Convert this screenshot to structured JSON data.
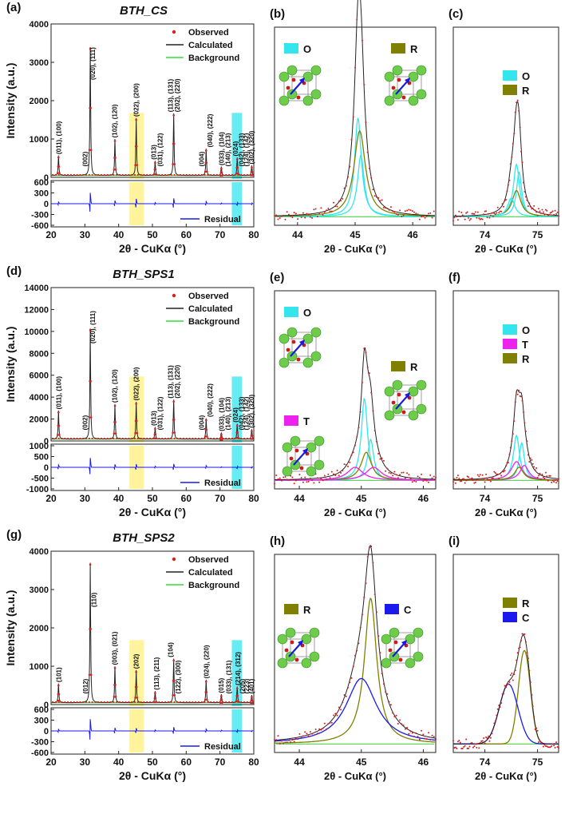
{
  "figure": {
    "panels": [
      {
        "id": "a",
        "label": "(a)",
        "title": "BTH_CS"
      },
      {
        "id": "b",
        "label": "(b)"
      },
      {
        "id": "c",
        "label": "(c)"
      },
      {
        "id": "d",
        "label": "(d)",
        "title": "BTH_SPS1"
      },
      {
        "id": "e",
        "label": "(e)"
      },
      {
        "id": "f",
        "label": "(f)"
      },
      {
        "id": "g",
        "label": "(g)",
        "title": "BTH_SPS2"
      },
      {
        "id": "h",
        "label": "(h)"
      },
      {
        "id": "i",
        "label": "(i)"
      }
    ],
    "colors": {
      "observed": "#d42020",
      "calculated": "#222222",
      "background": "#33dd33",
      "residual": "#1a1aee",
      "phase_O": "#33e6ee",
      "phase_R": "#808000",
      "phase_T": "#ee22ee",
      "phase_C": "#1a1aee",
      "highlight_yellow": "#fff07a",
      "highlight_cyan": "#33e6ee"
    }
  },
  "chart_data": [
    {
      "panel": "a",
      "type": "line",
      "title": "BTH_CS",
      "xlabel": "2θ - CuKα (°)",
      "ylabel": "Intensity (a.u.)",
      "xlim": [
        20,
        80
      ],
      "ylim": [
        -600,
        4000
      ],
      "xticks": [
        20,
        30,
        40,
        50,
        60,
        70,
        80
      ],
      "yticks": [
        0,
        1000,
        2000,
        3000,
        4000
      ],
      "residual_ticks": [
        600,
        300,
        0,
        -300,
        -600
      ],
      "legend": [
        "Observed",
        "Calculated",
        "Background"
      ],
      "residual_label": "Residual",
      "peaks": [
        [
          22.2,
          520
        ],
        [
          31.6,
          3350
        ],
        [
          38.9,
          950
        ],
        [
          45.2,
          1500
        ],
        [
          50.8,
          380
        ],
        [
          56.3,
          1620
        ],
        [
          65.9,
          700
        ],
        [
          70.4,
          230
        ],
        [
          75.1,
          470
        ],
        [
          79.4,
          260
        ]
      ],
      "peak_labels": [
        {
          "x": 22.2,
          "text": "(011), (100)"
        },
        {
          "x": 30.0,
          "text": "(002)"
        },
        {
          "x": 32.3,
          "text": "(020), (111)"
        },
        {
          "x": 38.8,
          "text": "(102), (120)"
        },
        {
          "x": 45.2,
          "text": "(022), (200)"
        },
        {
          "x": 50.3,
          "text": "(013)"
        },
        {
          "x": 52.3,
          "text": "(031), (122)"
        },
        {
          "x": 55.3,
          "text": "(113), (131)"
        },
        {
          "x": 57.3,
          "text": "(202), (220)"
        },
        {
          "x": 64.5,
          "text": "(004)"
        },
        {
          "x": 67.0,
          "text": "(040), (222)"
        },
        {
          "x": 70.4,
          "text": "(033), (104)"
        },
        {
          "x": 72.3,
          "text": "(140), (213)"
        },
        {
          "x": 74.6,
          "text": "(024)"
        },
        {
          "x": 76.3,
          "text": "(042), (133)"
        },
        {
          "x": 77.8,
          "text": "(124), (142)"
        },
        {
          "x": 79.3,
          "text": "(302), (320)"
        }
      ],
      "highlights": [
        {
          "x": [
            43.2,
            47.5
          ],
          "color": "yellow"
        },
        {
          "x": [
            73.5,
            76.5
          ],
          "color": "cyan"
        }
      ]
    },
    {
      "panel": "b",
      "type": "line",
      "xlabel": "2θ - CuKα (°)",
      "xlim": [
        43.6,
        46.4
      ],
      "xticks": [
        44,
        45,
        46
      ],
      "phases": [
        "O",
        "R"
      ],
      "components": [
        {
          "name": "O",
          "center": 45.05,
          "height": 0.53,
          "width": 0.09,
          "color": "#33e6ee"
        },
        {
          "name": "O",
          "center": 45.1,
          "height": 0.33,
          "width": 0.09,
          "color": "#33e6ee"
        },
        {
          "name": "R",
          "center": 45.08,
          "height": 0.46,
          "width": 0.14,
          "color": "#808000"
        }
      ],
      "calculated_peak": {
        "center": 45.07,
        "height": 0.78
      }
    },
    {
      "panel": "c",
      "type": "line",
      "xlabel": "2θ - CuKα (°)",
      "xlim": [
        73.4,
        75.4
      ],
      "xticks": [
        74,
        75
      ],
      "phases": [
        "O",
        "R"
      ]
    },
    {
      "panel": "d",
      "type": "line",
      "title": "BTH_SPS1",
      "xlabel": "2θ - CuKα (°)",
      "ylabel": "Intensity (a.u.)",
      "xlim": [
        20,
        80
      ],
      "ylim": [
        -1000,
        14000
      ],
      "xticks": [
        20,
        30,
        40,
        50,
        60,
        70,
        80
      ],
      "yticks": [
        0,
        2000,
        4000,
        6000,
        8000,
        10000,
        12000,
        14000
      ],
      "residual_ticks": [
        1000,
        500,
        0,
        -500,
        -1000
      ],
      "legend": [
        "Observed",
        "Calculated",
        "Background"
      ],
      "residual_label": "Residual",
      "peaks": [
        [
          22.2,
          2600
        ],
        [
          31.6,
          10100
        ],
        [
          38.9,
          3200
        ],
        [
          45.2,
          3400
        ],
        [
          50.8,
          1100
        ],
        [
          56.3,
          3600
        ],
        [
          65.9,
          1900
        ],
        [
          70.4,
          600
        ],
        [
          75.1,
          1400
        ],
        [
          79.4,
          900
        ]
      ],
      "peak_labels": [
        {
          "x": 22.2,
          "text": "(011), (100)"
        },
        {
          "x": 30.0,
          "text": "(002)"
        },
        {
          "x": 32.3,
          "text": "(020), (111)"
        },
        {
          "x": 38.8,
          "text": "(102), (120)"
        },
        {
          "x": 45.2,
          "text": "(022), (200)"
        },
        {
          "x": 50.3,
          "text": "(013)"
        },
        {
          "x": 52.3,
          "text": "(031), (122)"
        },
        {
          "x": 55.3,
          "text": "(113), (131)"
        },
        {
          "x": 57.3,
          "text": "(202), (220)"
        },
        {
          "x": 64.5,
          "text": "(004)"
        },
        {
          "x": 67.0,
          "text": "(040), (222)"
        },
        {
          "x": 70.4,
          "text": "(033), (104)"
        },
        {
          "x": 72.3,
          "text": "(140), (213)"
        },
        {
          "x": 74.6,
          "text": "(024)"
        },
        {
          "x": 76.3,
          "text": "(042), (133)"
        },
        {
          "x": 77.8,
          "text": "(124), (142)"
        },
        {
          "x": 79.3,
          "text": "(302), (320)"
        }
      ],
      "highlights": [
        {
          "x": [
            43.2,
            47.5
          ],
          "color": "yellow"
        },
        {
          "x": [
            73.5,
            76.5
          ],
          "color": "cyan"
        }
      ]
    },
    {
      "panel": "e",
      "type": "line",
      "xlabel": "2θ - CuKα (°)",
      "xlim": [
        43.6,
        46.2
      ],
      "xticks": [
        44,
        45,
        46
      ],
      "phases": [
        "O",
        "R",
        "T"
      ]
    },
    {
      "panel": "f",
      "type": "line",
      "xlabel": "2θ - CuKα (°)",
      "xlim": [
        73.4,
        75.4
      ],
      "xticks": [
        74,
        75
      ],
      "phases": [
        "O",
        "T",
        "R"
      ]
    },
    {
      "panel": "g",
      "type": "line",
      "title": "BTH_SPS2",
      "xlabel": "2θ - CuKα (°)",
      "ylabel": "Intensity (a.u.)",
      "xlim": [
        20,
        80
      ],
      "ylim": [
        -600,
        4000
      ],
      "xticks": [
        20,
        30,
        40,
        50,
        60,
        70,
        80
      ],
      "yticks": [
        0,
        1000,
        2000,
        3000,
        4000
      ],
      "residual_ticks": [
        600,
        300,
        0,
        -300,
        -600
      ],
      "legend": [
        "Observed",
        "Calculated",
        "Background"
      ],
      "residual_label": "Residual",
      "peaks": [
        [
          22.2,
          500
        ],
        [
          31.6,
          3650
        ],
        [
          38.9,
          950
        ],
        [
          45.2,
          850
        ],
        [
          50.8,
          300
        ],
        [
          56.3,
          1150
        ],
        [
          65.9,
          600
        ],
        [
          70.4,
          220
        ],
        [
          75.1,
          420
        ],
        [
          79.4,
          200
        ]
      ],
      "peak_labels": [
        {
          "x": 22.2,
          "text": "(101)"
        },
        {
          "x": 30.2,
          "text": "(012)"
        },
        {
          "x": 32.6,
          "text": "(110)"
        },
        {
          "x": 38.8,
          "text": "(003), (021)"
        },
        {
          "x": 45.2,
          "text": "(202)"
        },
        {
          "x": 51.2,
          "text": "(113), (211)"
        },
        {
          "x": 55.3,
          "text": "(104)"
        },
        {
          "x": 57.5,
          "text": "(122), (300)"
        },
        {
          "x": 65.9,
          "text": "(024), (220)"
        },
        {
          "x": 70.3,
          "text": "(015)"
        },
        {
          "x": 72.5,
          "text": "(033), (131)"
        },
        {
          "x": 75.3,
          "text": "(214), (312)"
        },
        {
          "x": 76.6,
          "text": "(205)"
        },
        {
          "x": 77.9,
          "text": "(223)"
        },
        {
          "x": 79.3,
          "text": "(401)"
        }
      ],
      "highlights": [
        {
          "x": [
            43.2,
            47.5
          ],
          "color": "yellow"
        },
        {
          "x": [
            73.5,
            76.5
          ],
          "color": "cyan"
        }
      ]
    },
    {
      "panel": "h",
      "type": "line",
      "xlabel": "2θ - CuKα (°)",
      "xlim": [
        43.6,
        46.2
      ],
      "xticks": [
        44,
        45,
        46
      ],
      "phases": [
        "R",
        "C"
      ]
    },
    {
      "panel": "i",
      "type": "line",
      "xlabel": "2θ - CuKα (°)",
      "xlim": [
        73.4,
        75.4
      ],
      "xticks": [
        74,
        75
      ],
      "phases": [
        "R",
        "C"
      ]
    }
  ]
}
